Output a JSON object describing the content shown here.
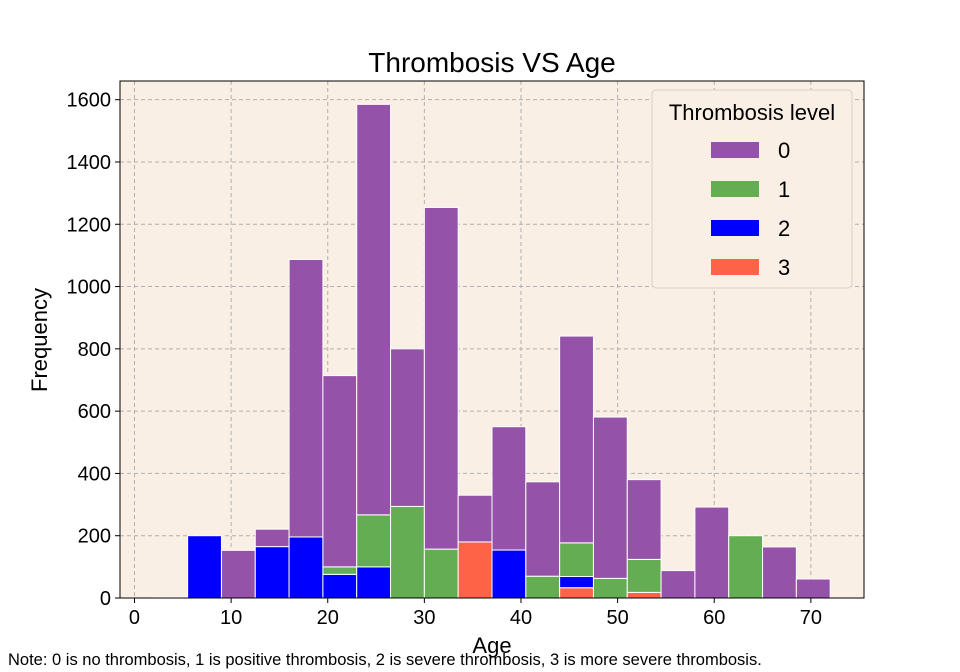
{
  "chart_data": {
    "type": "bar",
    "stacked": true,
    "title": "Thrombosis VS Age",
    "xlabel": "Age",
    "ylabel": "Frequency",
    "xlim": [
      -1.5,
      75.5
    ],
    "ylim": [
      0,
      1660
    ],
    "xticks": [
      0,
      10,
      20,
      30,
      40,
      50,
      60,
      70
    ],
    "yticks": [
      0,
      200,
      400,
      600,
      800,
      1000,
      1200,
      1400,
      1600
    ],
    "grid": true,
    "legend": {
      "title": "Thrombosis level",
      "position": "top-right"
    },
    "bin_width": 3.5,
    "bins": [
      {
        "x0": 2.0,
        "x1": 5.5,
        "t0": 0,
        "t1": 0,
        "t2": 3,
        "t3": 0
      },
      {
        "x0": 5.5,
        "x1": 9.0,
        "t0": 0,
        "t1": 0,
        "t2": 200,
        "t3": 0
      },
      {
        "x0": 9.0,
        "x1": 12.5,
        "t0": 153,
        "t1": 0,
        "t2": 0,
        "t3": 0
      },
      {
        "x0": 12.5,
        "x1": 16.0,
        "t0": 56,
        "t1": 0,
        "t2": 165,
        "t3": 0
      },
      {
        "x0": 16.0,
        "x1": 19.5,
        "t0": 891,
        "t1": 0,
        "t2": 196,
        "t3": 0
      },
      {
        "x0": 19.5,
        "x1": 23.0,
        "t0": 614,
        "t1": 24,
        "t2": 76,
        "t3": 0
      },
      {
        "x0": 23.0,
        "x1": 26.5,
        "t0": 1318,
        "t1": 167,
        "t2": 100,
        "t3": 0
      },
      {
        "x0": 26.5,
        "x1": 30.0,
        "t0": 506,
        "t1": 294,
        "t2": 0,
        "t3": 0
      },
      {
        "x0": 30.0,
        "x1": 33.5,
        "t0": 1097,
        "t1": 157,
        "t2": 0,
        "t3": 0
      },
      {
        "x0": 33.5,
        "x1": 37.0,
        "t0": 150,
        "t1": 0,
        "t2": 0,
        "t3": 180
      },
      {
        "x0": 37.0,
        "x1": 40.5,
        "t0": 396,
        "t1": 0,
        "t2": 154,
        "t3": 0
      },
      {
        "x0": 40.5,
        "x1": 44.0,
        "t0": 303,
        "t1": 70,
        "t2": 0,
        "t3": 0
      },
      {
        "x0": 44.0,
        "x1": 47.5,
        "t0": 664,
        "t1": 108,
        "t2": 36,
        "t3": 33
      },
      {
        "x0": 47.5,
        "x1": 51.0,
        "t0": 518,
        "t1": 63,
        "t2": 0,
        "t3": 0
      },
      {
        "x0": 51.0,
        "x1": 54.5,
        "t0": 256,
        "t1": 106,
        "t2": 0,
        "t3": 18
      },
      {
        "x0": 54.5,
        "x1": 58.0,
        "t0": 88,
        "t1": 0,
        "t2": 0,
        "t3": 0
      },
      {
        "x0": 58.0,
        "x1": 61.5,
        "t0": 292,
        "t1": 0,
        "t2": 0,
        "t3": 0
      },
      {
        "x0": 61.5,
        "x1": 65.0,
        "t0": 0,
        "t1": 200,
        "t2": 0,
        "t3": 0
      },
      {
        "x0": 65.0,
        "x1": 68.5,
        "t0": 164,
        "t1": 0,
        "t2": 0,
        "t3": 0
      },
      {
        "x0": 68.5,
        "x1": 72.0,
        "t0": 61,
        "t1": 0,
        "t2": 0,
        "t3": 0
      }
    ],
    "series": [
      {
        "name": "0",
        "key": "t0",
        "color": "#9452a8"
      },
      {
        "name": "1",
        "key": "t1",
        "color": "#65ad53"
      },
      {
        "name": "2",
        "key": "t2",
        "color": "#0000ff"
      },
      {
        "name": "3",
        "key": "t3",
        "color": "#ff6347"
      }
    ],
    "stack_order": [
      "t3",
      "t2",
      "t1",
      "t0"
    ],
    "note": "Note: 0 is no thrombosis, 1 is positive thrombosis, 2 is severe thrombosis, 3 is more severe thrombosis."
  },
  "colors": {
    "plot_background": "#faefe5",
    "grid": "#b0b0b0",
    "bar_edge": "#ffffff"
  }
}
